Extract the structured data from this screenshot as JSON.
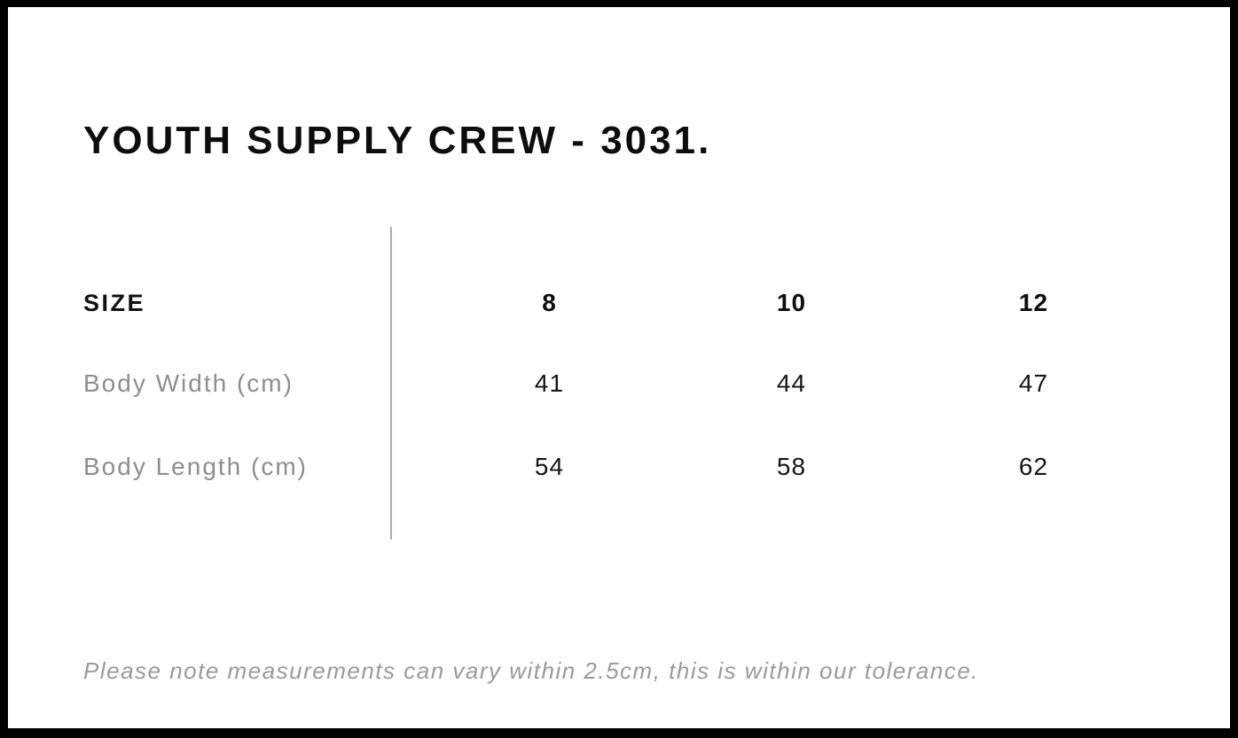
{
  "page": {
    "title": "YOUTH SUPPLY CREW - 3031.",
    "note": "Please note measurements can vary within 2.5cm, this is within our tolerance."
  },
  "size_chart": {
    "header_label": "SIZE",
    "sizes": [
      "8",
      "10",
      "12"
    ],
    "rows": [
      {
        "label": "Body Width (cm)",
        "values": [
          "41",
          "44",
          "47"
        ]
      },
      {
        "label": "Body Length (cm)",
        "values": [
          "54",
          "58",
          "62"
        ]
      }
    ]
  },
  "colors": {
    "background": "#ffffff",
    "frame": "#000000",
    "text_primary": "#0d0d0d",
    "text_secondary": "#8e8e8e",
    "note_text": "#9a9a9a",
    "divider": "#ababab"
  }
}
